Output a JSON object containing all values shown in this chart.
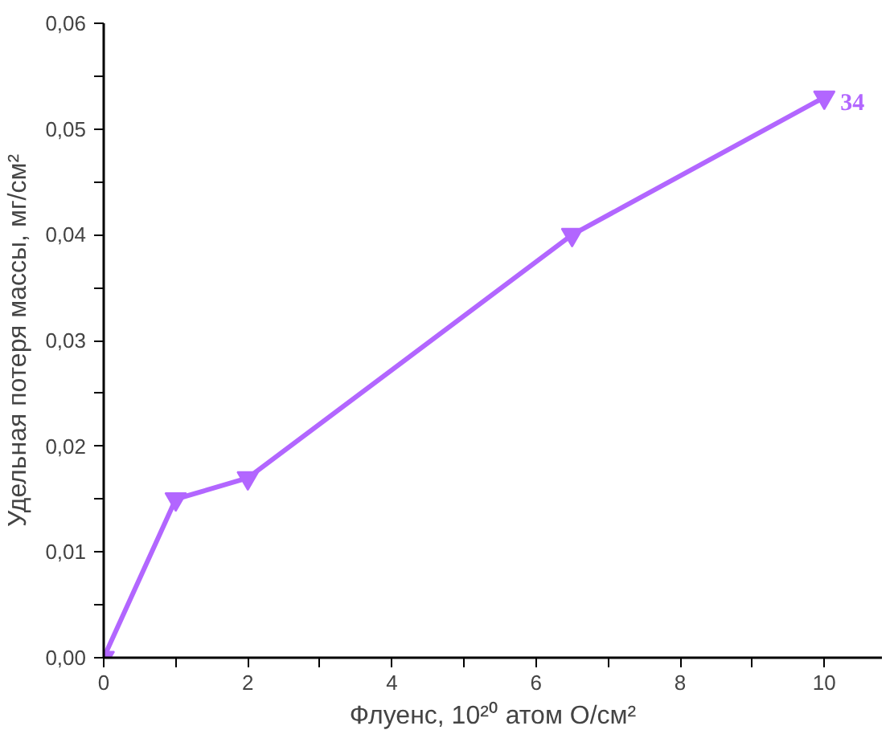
{
  "chart_data": {
    "type": "line",
    "xlabel": "Флуенс, 10²⁰ атом O/см²",
    "ylabel": "Удельная потеря массы, мг/см²",
    "x": [
      0,
      1,
      2,
      6.5,
      10
    ],
    "series": [
      {
        "name": "34",
        "color": "#b266ff",
        "values": [
          0.0,
          0.015,
          0.017,
          0.04,
          0.053
        ]
      }
    ],
    "xlim": [
      0,
      10.8
    ],
    "ylim": [
      0,
      0.06
    ],
    "xticks": [
      0,
      {
        "value": 1,
        "label": null
      },
      2,
      {
        "value": 3,
        "label": null
      },
      4,
      {
        "value": 5,
        "label": null
      },
      6,
      {
        "value": 7,
        "label": null
      },
      8,
      {
        "value": 9,
        "label": null
      },
      10
    ],
    "yticks": [
      {
        "value": 0,
        "label": "0,00"
      },
      {
        "value": 0.005,
        "label": null
      },
      {
        "value": 0.01,
        "label": "0,01"
      },
      {
        "value": 0.015,
        "label": null
      },
      {
        "value": 0.02,
        "label": "0,02"
      },
      {
        "value": 0.025,
        "label": null
      },
      {
        "value": 0.03,
        "label": "0,03"
      },
      {
        "value": 0.035,
        "label": null
      },
      {
        "value": 0.04,
        "label": "0,04"
      },
      {
        "value": 0.045,
        "label": null
      },
      {
        "value": 0.05,
        "label": "0,05"
      },
      {
        "value": 0.055,
        "label": null
      },
      {
        "value": 0.06,
        "label": "0,06"
      }
    ],
    "marker": "triangle",
    "line_style": "solid",
    "grid": false,
    "legend": false
  }
}
